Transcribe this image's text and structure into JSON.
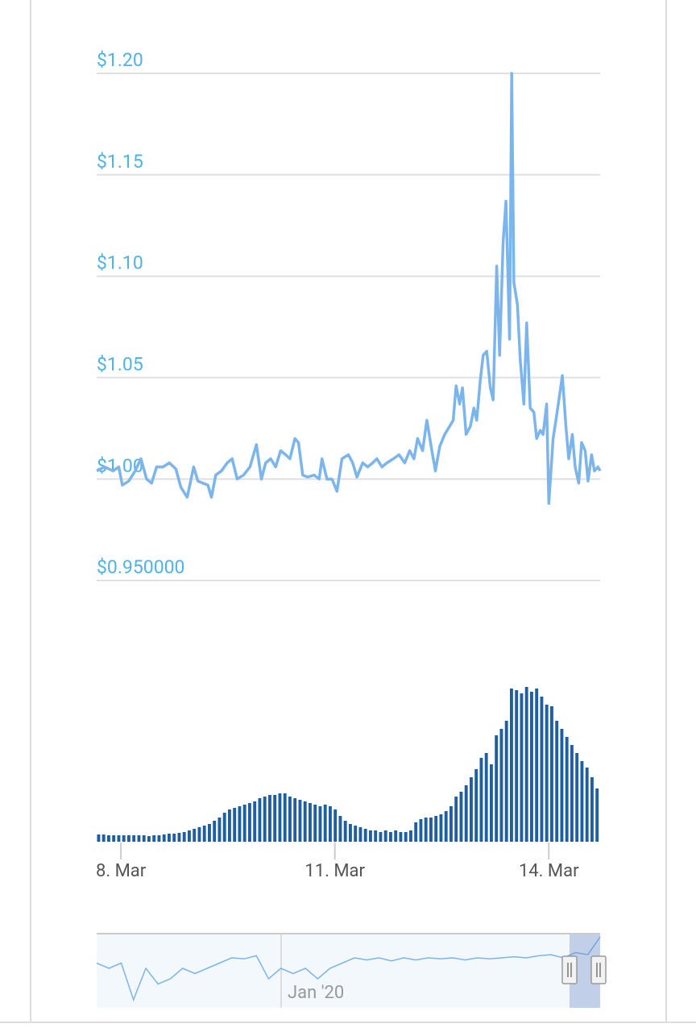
{
  "chart_data": [
    {
      "type": "line",
      "color": "#7cb5ec",
      "x": [
        7.66,
        7.77,
        7.89,
        7.97,
        8.02,
        8.11,
        8.2,
        8.28,
        8.36,
        8.43,
        8.5,
        8.59,
        8.68,
        8.77,
        8.84,
        8.93,
        9.02,
        9.08,
        9.15,
        9.22,
        9.27,
        9.33,
        9.41,
        9.49,
        9.56,
        9.63,
        9.72,
        9.81,
        9.9,
        9.97,
        10.03,
        10.1,
        10.17,
        10.24,
        10.31,
        10.37,
        10.44,
        10.49,
        10.55,
        10.62,
        10.71,
        10.78,
        10.82,
        10.89,
        10.96,
        11.03,
        11.1,
        11.19,
        11.25,
        11.31,
        11.39,
        11.46,
        11.53,
        11.59,
        11.66,
        11.73,
        11.82,
        11.9,
        11.98,
        12.05,
        12.11,
        12.16,
        12.23,
        12.29,
        12.36,
        12.41,
        12.47,
        12.54,
        12.61,
        12.66,
        12.7,
        12.75,
        12.79,
        12.84,
        12.9,
        12.95,
        12.99,
        13.04,
        13.08,
        13.13,
        13.18,
        13.22,
        13.27,
        13.31,
        13.36,
        13.4,
        13.45,
        13.48,
        13.51,
        13.56,
        13.6,
        13.65,
        13.69,
        13.74,
        13.79,
        13.83,
        13.88,
        13.92,
        13.97,
        14.0,
        14.06,
        14.1,
        14.15,
        14.19,
        14.24,
        14.28,
        14.33,
        14.37,
        14.42,
        14.46,
        14.51,
        14.55,
        14.6,
        14.64,
        14.69,
        14.72
      ],
      "values": [
        1.004,
        1.006,
        1.004,
        1.006,
        0.997,
        0.999,
        1.004,
        1.01,
        1.0,
        0.998,
        1.006,
        1.006,
        1.008,
        1.005,
        0.996,
        0.991,
        1.006,
        0.999,
        0.998,
        0.997,
        0.991,
        1.002,
        1.004,
        1.008,
        1.01,
        1.0,
        1.002,
        1.006,
        1.017,
        1.0,
        1.008,
        1.01,
        1.006,
        1.014,
        1.012,
        1.01,
        1.02,
        1.018,
        1.002,
        1.001,
        1.002,
        1.0,
        1.01,
        1.0,
        1.0,
        0.994,
        1.01,
        1.012,
        1.008,
        1.001,
        1.008,
        1.006,
        1.008,
        1.01,
        1.006,
        1.008,
        1.01,
        1.012,
        1.008,
        1.014,
        1.01,
        1.02,
        1.014,
        1.029,
        1.014,
        1.004,
        1.016,
        1.022,
        1.026,
        1.029,
        1.046,
        1.037,
        1.045,
        1.022,
        1.026,
        1.035,
        1.029,
        1.049,
        1.061,
        1.063,
        1.045,
        1.039,
        1.105,
        1.061,
        1.117,
        1.137,
        1.069,
        1.2,
        1.097,
        1.086,
        1.059,
        1.037,
        1.077,
        1.035,
        1.033,
        1.02,
        1.024,
        1.022,
        1.037,
        0.988,
        1.02,
        1.029,
        1.041,
        1.051,
        1.026,
        1.01,
        1.022,
        1.006,
        0.998,
        1.018,
        1.014,
        0.999,
        1.012,
        1.004,
        1.006,
        1.004
      ],
      "xlim": [
        7.66,
        14.72
      ],
      "xticks": [
        {
          "value": 8,
          "label": "8. Mar"
        },
        {
          "value": 11,
          "label": "11. Mar"
        },
        {
          "value": 14,
          "label": "14. Mar"
        }
      ],
      "ylim": [
        0.95,
        1.2
      ],
      "yticks": [
        {
          "value": 1.2,
          "label": "$1.20"
        },
        {
          "value": 1.15,
          "label": "$1.15"
        },
        {
          "value": 1.1,
          "label": "$1.10"
        },
        {
          "value": 1.05,
          "label": "$1.05"
        },
        {
          "value": 1.0,
          "label": "$1.00"
        },
        {
          "value": 0.95,
          "label": "$0.950000"
        }
      ],
      "grid": true
    },
    {
      "type": "bar",
      "color": "#1f5fa0",
      "values": [
        9,
        9,
        8,
        8,
        8,
        8,
        8,
        8,
        8,
        8,
        7,
        8,
        8,
        9,
        10,
        10,
        11,
        12,
        14,
        16,
        18,
        20,
        22,
        26,
        30,
        36,
        40,
        42,
        44,
        46,
        48,
        50,
        54,
        56,
        58,
        58,
        60,
        60,
        56,
        54,
        52,
        50,
        48,
        46,
        44,
        46,
        44,
        40,
        32,
        26,
        22,
        20,
        18,
        16,
        14,
        14,
        12,
        14,
        12,
        14,
        12,
        12,
        14,
        24,
        28,
        30,
        30,
        32,
        34,
        38,
        44,
        56,
        62,
        70,
        80,
        90,
        104,
        110,
        96,
        132,
        140,
        150,
        190,
        188,
        184,
        192,
        186,
        190,
        180,
        170,
        168,
        150,
        140,
        130,
        120,
        110,
        100,
        92,
        80,
        66
      ]
    },
    {
      "type": "area",
      "color": "#7cb5ec",
      "label": "Jan '20",
      "values": [
        0.995,
        0.99,
        0.995,
        0.96,
        0.99,
        0.975,
        0.98,
        0.99,
        0.985,
        0.99,
        0.995,
        1.0,
        0.999,
        1.002,
        0.98,
        0.99,
        0.985,
        0.99,
        0.98,
        0.99,
        0.995,
        1.0,
        0.998,
        1.0,
        0.997,
        1.0,
        0.998,
        1.0,
        0.999,
        1.0,
        0.998,
        1.0,
        0.999,
        1.0,
        1.001,
        1.0,
        1.002,
        1.003,
        1.0,
        1.005,
        1.003,
        1.02
      ]
    }
  ]
}
